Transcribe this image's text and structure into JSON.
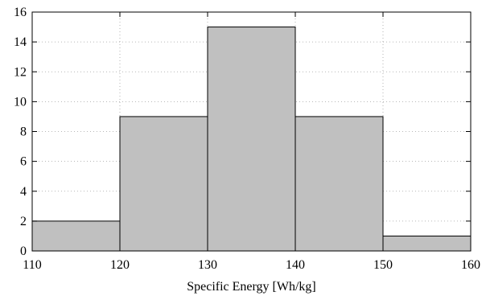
{
  "chart_data": {
    "type": "bar",
    "subtype": "histogram",
    "bin_edges": [
      110,
      120,
      130,
      140,
      150,
      160
    ],
    "values": [
      2,
      9,
      15,
      9,
      1
    ],
    "title": "",
    "xlabel": "Specific Energy [Wh/kg]",
    "ylabel": "",
    "xlim": [
      110,
      160
    ],
    "ylim": [
      0,
      16
    ],
    "x_ticks": [
      110,
      120,
      130,
      140,
      150,
      160
    ],
    "y_ticks": [
      0,
      2,
      4,
      6,
      8,
      10,
      12,
      14,
      16
    ],
    "grid": true,
    "legend": false,
    "colors": {
      "bar_fill": "#c0c0c0",
      "bar_stroke": "#000000",
      "grid": "#a0a0a0"
    }
  }
}
